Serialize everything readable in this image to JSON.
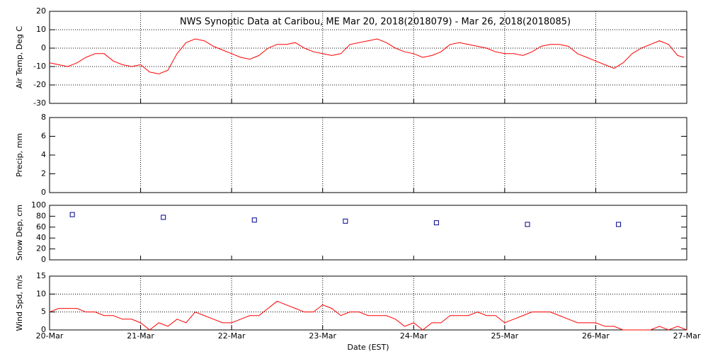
{
  "chart_data": [
    {
      "type": "line",
      "title": "NWS Synoptic Data at Caribou, ME   Mar 20, 2018(2018079) - Mar 26, 2018(2018085)",
      "y_label": "Air Temp, Deg C",
      "ylim": [
        -30,
        20
      ],
      "yticks": [
        -30,
        -20,
        -10,
        0,
        10,
        20
      ],
      "xlim": [
        0,
        7
      ],
      "xticks": [
        0,
        1,
        2,
        3,
        4,
        5,
        6,
        7
      ],
      "grid": "both",
      "series": [
        {
          "color": "#ff0000",
          "x": [
            0,
            0.1,
            0.2,
            0.3,
            0.4,
            0.5,
            0.6,
            0.7,
            0.8,
            0.9,
            1,
            1.1,
            1.2,
            1.3,
            1.4,
            1.5,
            1.6,
            1.7,
            1.8,
            1.9,
            2,
            2.1,
            2.2,
            2.3,
            2.4,
            2.5,
            2.6,
            2.7,
            2.8,
            2.9,
            3,
            3.1,
            3.2,
            3.3,
            3.4,
            3.5,
            3.6,
            3.7,
            3.8,
            3.9,
            4,
            4.1,
            4.2,
            4.3,
            4.4,
            4.5,
            4.6,
            4.7,
            4.8,
            4.9,
            5,
            5.1,
            5.2,
            5.3,
            5.4,
            5.5,
            5.6,
            5.7,
            5.8,
            5.9,
            6,
            6.1,
            6.2,
            6.3,
            6.4,
            6.5,
            6.6,
            6.7,
            6.8,
            6.9,
            6.97
          ],
          "values": [
            -8,
            -9,
            -10,
            -8,
            -5,
            -3,
            -3,
            -7,
            -9,
            -10,
            -9,
            -13,
            -14,
            -12,
            -3,
            3,
            5,
            4,
            1,
            -1,
            -3,
            -5,
            -6,
            -4,
            0,
            2,
            2,
            3,
            0,
            -2,
            -3,
            -4,
            -3,
            2,
            3,
            4,
            5,
            3,
            0,
            -2,
            -3,
            -5,
            -4,
            -2,
            2,
            3,
            2,
            1,
            0,
            -2,
            -3,
            -3,
            -4,
            -2,
            1,
            2,
            2,
            1,
            -3,
            -5,
            -7,
            -9,
            -11,
            -8,
            -3,
            0,
            2,
            4,
            2,
            -4,
            -5
          ]
        }
      ]
    },
    {
      "type": "line",
      "y_label": "Precip, mm",
      "ylim": [
        0,
        8
      ],
      "yticks": [
        0,
        2,
        4,
        6,
        8
      ],
      "xlim": [
        0,
        7
      ],
      "xticks": [
        0,
        1,
        2,
        3,
        4,
        5,
        6,
        7
      ],
      "grid": "x",
      "series": [
        {
          "color": "#ff0000",
          "x": [],
          "values": []
        }
      ]
    },
    {
      "type": "scatter",
      "y_label": "Snow Dep, cm",
      "ylim": [
        0,
        100
      ],
      "yticks": [
        0,
        20,
        40,
        60,
        80,
        100
      ],
      "xlim": [
        0,
        7
      ],
      "xticks": [
        0,
        1,
        2,
        3,
        4,
        5,
        6,
        7
      ],
      "grid": "none",
      "marker": "square",
      "series": [
        {
          "color": "#00008b",
          "x": [
            0.25,
            1.25,
            2.25,
            3.25,
            4.25,
            5.25,
            6.25
          ],
          "values": [
            83,
            78,
            73,
            71,
            68,
            65,
            65
          ]
        }
      ]
    },
    {
      "type": "line",
      "y_label": "Wind Spd, m/s",
      "x_label": "Date (EST)",
      "ylim": [
        0,
        15
      ],
      "yticks": [
        0,
        5,
        10,
        15
      ],
      "xlim": [
        0,
        7
      ],
      "grid": "both",
      "xticks": [
        {
          "value": 0,
          "label": "20-Mar"
        },
        {
          "value": 1,
          "label": "21-Mar"
        },
        {
          "value": 2,
          "label": "22-Mar"
        },
        {
          "value": 3,
          "label": "23-Mar"
        },
        {
          "value": 4,
          "label": "24-Mar"
        },
        {
          "value": 5,
          "label": "25-Mar"
        },
        {
          "value": 6,
          "label": "26-Mar"
        },
        {
          "value": 7,
          "label": "27-Mar"
        }
      ],
      "series": [
        {
          "color": "#ff0000",
          "x": [
            0,
            0.1,
            0.2,
            0.3,
            0.4,
            0.5,
            0.6,
            0.7,
            0.8,
            0.9,
            1,
            1.1,
            1.2,
            1.3,
            1.4,
            1.5,
            1.6,
            1.7,
            1.8,
            1.9,
            2,
            2.1,
            2.2,
            2.3,
            2.4,
            2.5,
            2.6,
            2.7,
            2.8,
            2.9,
            3,
            3.1,
            3.2,
            3.3,
            3.4,
            3.5,
            3.6,
            3.7,
            3.8,
            3.9,
            4,
            4.1,
            4.2,
            4.3,
            4.4,
            4.5,
            4.6,
            4.7,
            4.8,
            4.9,
            5,
            5.1,
            5.2,
            5.3,
            5.4,
            5.5,
            5.6,
            5.7,
            5.8,
            5.9,
            6,
            6.1,
            6.2,
            6.3,
            6.4,
            6.5,
            6.6,
            6.7,
            6.8,
            6.9,
            7
          ],
          "values": [
            5,
            6,
            6,
            6,
            5,
            5,
            4,
            4,
            3,
            3,
            2,
            0,
            2,
            1,
            3,
            2,
            5,
            4,
            3,
            2,
            2,
            3,
            4,
            4,
            6,
            8,
            7,
            6,
            5,
            5,
            7,
            6,
            4,
            5,
            5,
            4,
            4,
            4,
            3,
            1,
            2,
            0,
            2,
            2,
            4,
            4,
            4,
            5,
            4,
            4,
            2,
            3,
            4,
            5,
            5,
            5,
            4,
            3,
            2,
            2,
            2,
            1,
            1,
            0,
            0,
            0,
            0,
            1,
            0,
            1,
            0
          ]
        }
      ]
    }
  ]
}
